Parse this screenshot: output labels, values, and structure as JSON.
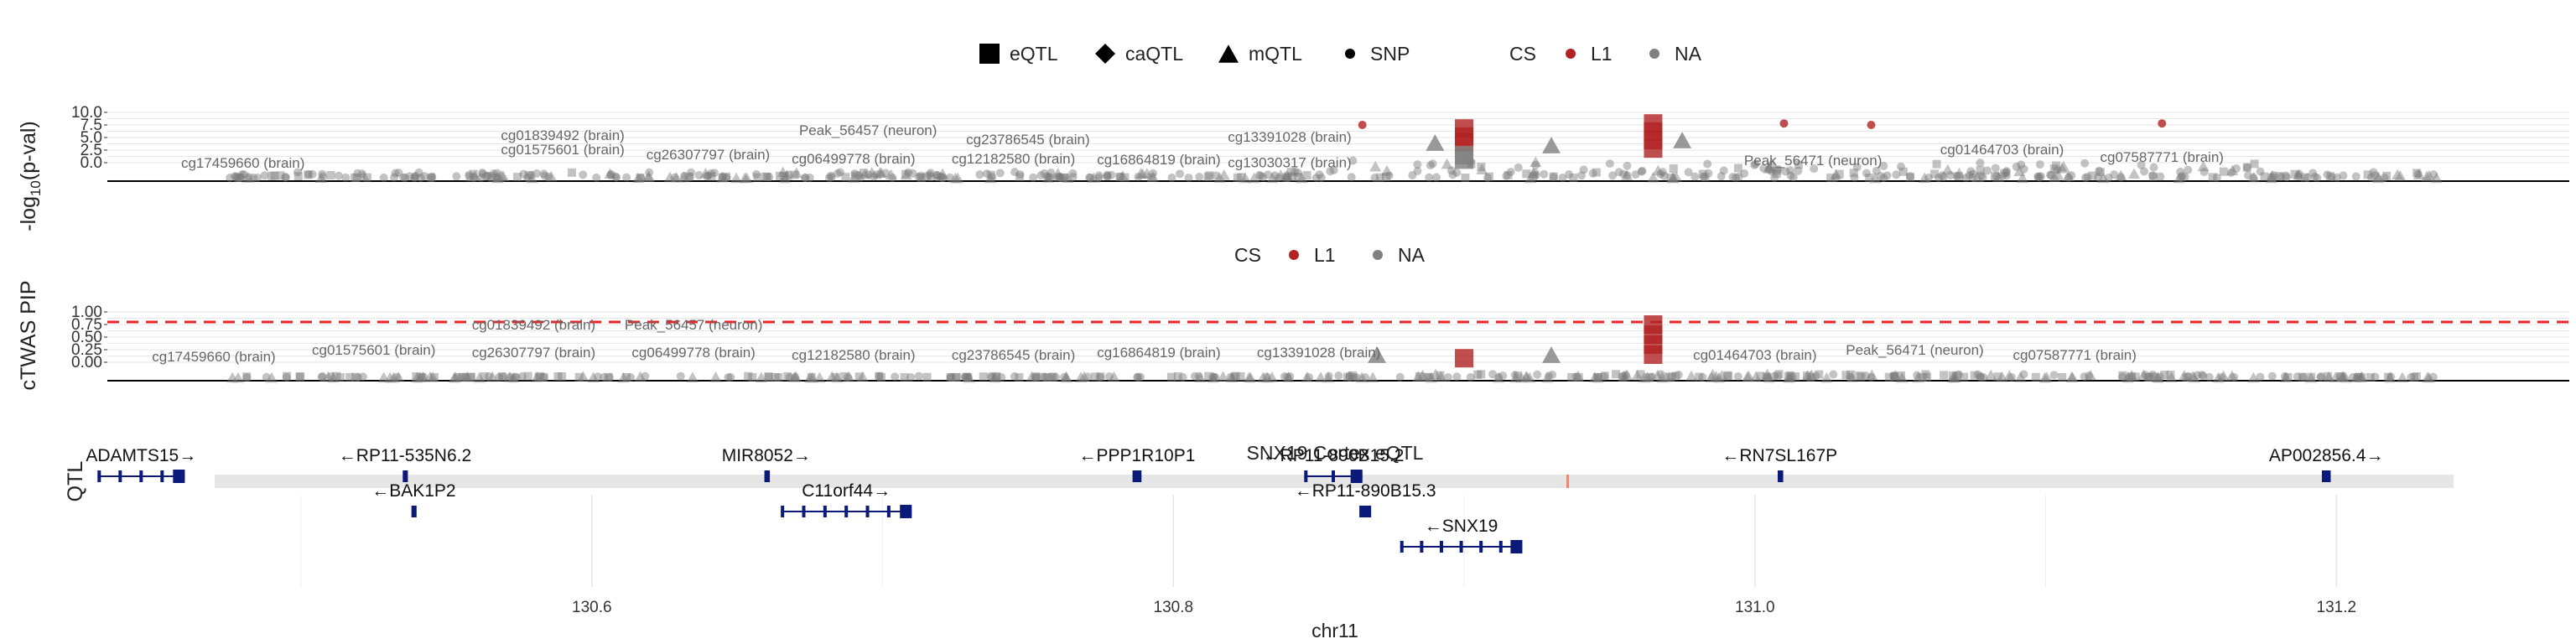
{
  "chart_data": [
    {
      "type": "scatter",
      "ylabel_prefix": "-log",
      "ylabel_sub": "10",
      "ylabel_suffix": "(p-val)",
      "yticks": [
        "0.0",
        "2.5",
        "5.0",
        "7.5",
        "10.0"
      ],
      "ylim": [
        0,
        10
      ],
      "legend": [
        {
          "name": "eQTL",
          "shape": "square"
        },
        {
          "name": "caQTL",
          "shape": "diamond"
        },
        {
          "name": "mQTL",
          "shape": "triangle"
        },
        {
          "name": "SNP",
          "shape": "circle"
        }
      ],
      "cs_legend": {
        "title": "CS",
        "items": [
          {
            "name": "L1",
            "color": "#b22222"
          },
          {
            "name": "NA",
            "color": "#808080"
          }
        ]
      },
      "highlight_points": [
        {
          "pos": 130.9,
          "y": 6.8,
          "shape": "square",
          "color": "#b22222"
        },
        {
          "pos": 130.9,
          "y": 5.2,
          "shape": "square",
          "color": "#b22222"
        },
        {
          "pos": 130.9,
          "y": 4.0,
          "shape": "square",
          "color": "#b22222"
        },
        {
          "pos": 130.965,
          "y": 7.8,
          "shape": "square",
          "color": "#b22222"
        },
        {
          "pos": 130.965,
          "y": 6.2,
          "shape": "square",
          "color": "#b22222"
        },
        {
          "pos": 130.965,
          "y": 4.5,
          "shape": "square",
          "color": "#b22222"
        },
        {
          "pos": 130.965,
          "y": 2.8,
          "shape": "square",
          "color": "#b22222"
        },
        {
          "pos": 130.865,
          "y": 7.5,
          "shape": "circle",
          "color": "#b22222"
        },
        {
          "pos": 131.01,
          "y": 7.8,
          "shape": "circle",
          "color": "#b22222"
        },
        {
          "pos": 131.04,
          "y": 7.5,
          "shape": "circle",
          "color": "#b22222"
        },
        {
          "pos": 131.14,
          "y": 7.8,
          "shape": "circle",
          "color": "#b22222"
        },
        {
          "pos": 130.9,
          "y": 1.5,
          "shape": "square",
          "color": "#808080"
        },
        {
          "pos": 130.9,
          "y": 0.6,
          "shape": "square",
          "color": "#808080"
        },
        {
          "pos": 130.93,
          "y": 3.5,
          "shape": "triangle",
          "color": "#808080"
        },
        {
          "pos": 130.89,
          "y": 4.0,
          "shape": "triangle",
          "color": "#808080"
        },
        {
          "pos": 130.975,
          "y": 4.5,
          "shape": "triangle",
          "color": "#808080"
        }
      ],
      "annotations": [
        {
          "text": "cg17459660 (brain)",
          "pos": 130.48,
          "y": 0.3
        },
        {
          "text": "cg01839492 (brain)",
          "pos": 130.59,
          "y": 5.8
        },
        {
          "text": "cg01575601 (brain)",
          "pos": 130.59,
          "y": 3.0
        },
        {
          "text": "cg26307797 (brain)",
          "pos": 130.64,
          "y": 2.0
        },
        {
          "text": "Peak_56457 (neuron)",
          "pos": 130.695,
          "y": 6.8
        },
        {
          "text": "cg06499778 (brain)",
          "pos": 130.69,
          "y": 1.2
        },
        {
          "text": "cg23786545 (brain)",
          "pos": 130.75,
          "y": 5.0
        },
        {
          "text": "cg12182580 (brain)",
          "pos": 130.745,
          "y": 1.2
        },
        {
          "text": "cg13391028 (brain)",
          "pos": 130.84,
          "y": 5.5
        },
        {
          "text": "cg16864819 (brain)",
          "pos": 130.795,
          "y": 1.0
        },
        {
          "text": "cg13030317 (brain)",
          "pos": 130.84,
          "y": 0.4
        },
        {
          "text": "Peak_56471 (neuron)",
          "pos": 131.02,
          "y": 0.8
        },
        {
          "text": "cg01464703 (brain)",
          "pos": 131.085,
          "y": 3.0
        },
        {
          "text": "cg07587771 (brain)",
          "pos": 131.14,
          "y": 1.5
        }
      ]
    },
    {
      "type": "scatter",
      "ylabel": "cTWAS PIP",
      "yticks": [
        "0.00",
        "0.25",
        "0.50",
        "0.75",
        "1.00"
      ],
      "ylim": [
        0,
        1
      ],
      "threshold": 0.8,
      "cs_legend": {
        "title": "CS",
        "items": [
          {
            "name": "L1",
            "color": "#b22222"
          },
          {
            "name": "NA",
            "color": "#808080"
          }
        ]
      },
      "highlight_points": [
        {
          "pos": 130.965,
          "y": 0.75,
          "shape": "square",
          "color": "#b22222"
        },
        {
          "pos": 130.965,
          "y": 0.55,
          "shape": "square",
          "color": "#b22222"
        },
        {
          "pos": 130.965,
          "y": 0.35,
          "shape": "square",
          "color": "#b22222"
        },
        {
          "pos": 130.965,
          "y": 0.15,
          "shape": "square",
          "color": "#b22222"
        },
        {
          "pos": 130.9,
          "y": 0.08,
          "shape": "square",
          "color": "#b22222"
        },
        {
          "pos": 130.93,
          "y": 0.15,
          "shape": "triangle",
          "color": "#808080"
        },
        {
          "pos": 130.87,
          "y": 0.15,
          "shape": "triangle",
          "color": "#808080"
        }
      ],
      "annotations": [
        {
          "text": "cg17459660 (brain)",
          "pos": 130.47,
          "y": 0.12
        },
        {
          "text": "cg01575601 (brain)",
          "pos": 130.525,
          "y": 0.25
        },
        {
          "text": "cg01839492 (brain)",
          "pos": 130.58,
          "y": 0.75
        },
        {
          "text": "cg26307797 (brain)",
          "pos": 130.58,
          "y": 0.2
        },
        {
          "text": "Peak_56457 (neuron)",
          "pos": 130.635,
          "y": 0.75
        },
        {
          "text": "cg06499778 (brain)",
          "pos": 130.635,
          "y": 0.2
        },
        {
          "text": "cg12182580 (brain)",
          "pos": 130.69,
          "y": 0.15
        },
        {
          "text": "cg23786545 (brain)",
          "pos": 130.745,
          "y": 0.15
        },
        {
          "text": "cg16864819 (brain)",
          "pos": 130.795,
          "y": 0.2
        },
        {
          "text": "cg13391028 (brain)",
          "pos": 130.85,
          "y": 0.2
        },
        {
          "text": "cg01464703 (brain)",
          "pos": 131.0,
          "y": 0.15
        },
        {
          "text": "Peak_56471 (neuron)",
          "pos": 131.055,
          "y": 0.25
        },
        {
          "text": "cg07587771 (brain)",
          "pos": 131.11,
          "y": 0.15
        }
      ]
    },
    {
      "type": "scatter",
      "title": "SNX19 Cortex eQTL",
      "ylabel": "QTL"
    },
    {
      "type": "table",
      "xlabel": "chr11",
      "xlim": [
        130.47,
        131.24
      ],
      "xticks": [
        "130.6",
        "130.8",
        "131.0",
        "131.2"
      ],
      "xtick_values": [
        130.6,
        130.8,
        131.0,
        131.2
      ],
      "genes": [
        {
          "name": "ADAMTS15",
          "strand": "+",
          "start": 130.43,
          "end": 130.46,
          "row": 0
        },
        {
          "name": "RP11-535N6.2",
          "strand": "-",
          "start": 130.535,
          "end": 130.5365,
          "row": 0
        },
        {
          "name": "BAK1P2",
          "strand": "-",
          "start": 130.538,
          "end": 130.5395,
          "row": 1
        },
        {
          "name": "MIR8052",
          "strand": "+",
          "start": 130.6595,
          "end": 130.6605,
          "row": 0
        },
        {
          "name": "C11orf44",
          "strand": "+",
          "start": 130.665,
          "end": 130.71,
          "row": 1
        },
        {
          "name": "PPP1R10P1",
          "strand": "-",
          "start": 130.786,
          "end": 130.789,
          "row": 0
        },
        {
          "name": "RP11-890B15.2",
          "strand": "-",
          "start": 130.845,
          "end": 130.865,
          "row": 0
        },
        {
          "name": "RP11-890B15.3",
          "strand": "-",
          "start": 130.864,
          "end": 130.868,
          "row": 1
        },
        {
          "name": "SNX19",
          "strand": "-",
          "start": 130.878,
          "end": 130.92,
          "row": 2
        },
        {
          "name": "RN7SL167P",
          "strand": "-",
          "start": 131.008,
          "end": 131.009,
          "row": 0
        },
        {
          "name": "AP002856.4",
          "strand": "+",
          "start": 131.195,
          "end": 131.198,
          "row": 0
        }
      ]
    }
  ]
}
